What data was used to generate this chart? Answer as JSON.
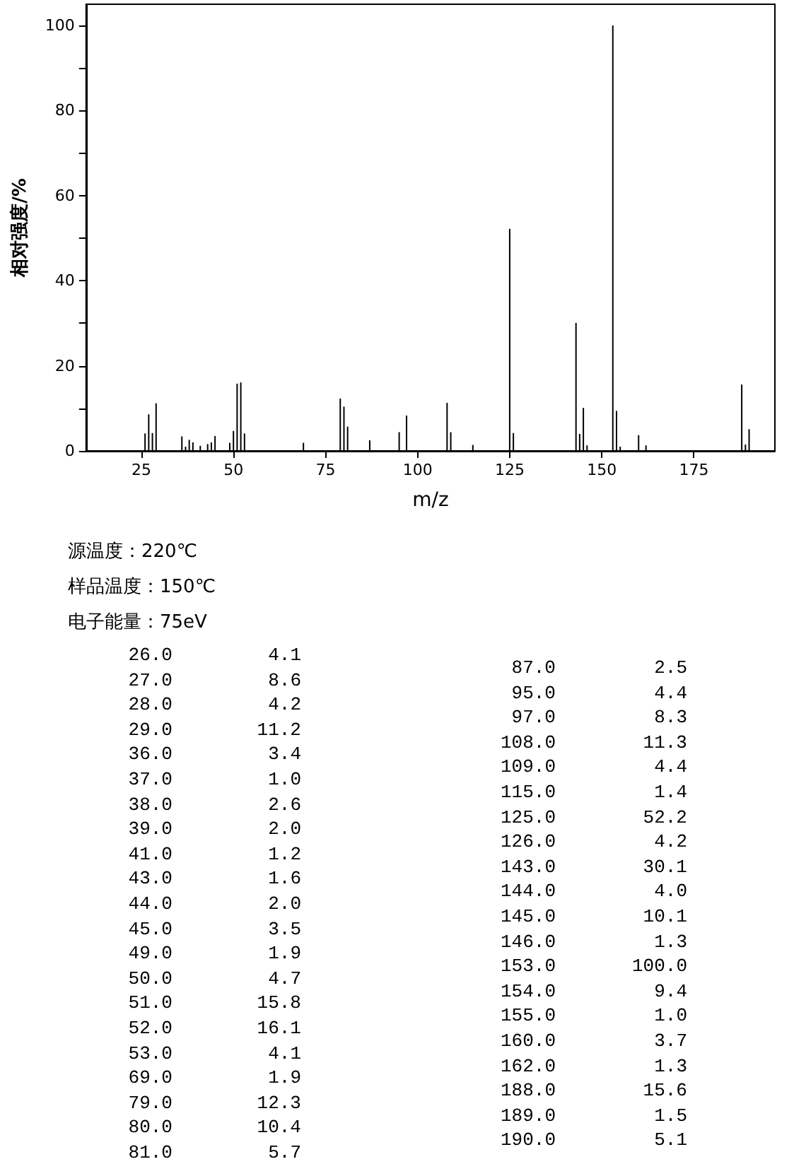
{
  "chart_data": [
    {
      "type": "bar",
      "xlabel": "m/z",
      "ylabel": "相对强度/%",
      "x": [
        26,
        27,
        28,
        29,
        36,
        37,
        38,
        39,
        41,
        43,
        44,
        45,
        49,
        50,
        51,
        52,
        53,
        69,
        79,
        80,
        81,
        87,
        95,
        97,
        108,
        109,
        115,
        125,
        126,
        143,
        144,
        145,
        146,
        153,
        154,
        155,
        160,
        162,
        188,
        189,
        190
      ],
      "values": [
        4.1,
        8.6,
        4.2,
        11.2,
        3.4,
        1.0,
        2.6,
        2.0,
        1.2,
        1.6,
        2.0,
        3.5,
        1.9,
        4.7,
        15.8,
        16.1,
        4.1,
        1.9,
        12.3,
        10.4,
        5.7,
        2.5,
        4.4,
        8.3,
        11.3,
        4.4,
        1.4,
        52.2,
        4.2,
        30.1,
        4.0,
        10.1,
        1.3,
        100.0,
        9.4,
        1.0,
        3.7,
        1.3,
        15.6,
        1.5,
        5.1
      ],
      "color": "#000000",
      "xlim": [
        10,
        197
      ],
      "xticks": [
        25,
        50,
        75,
        100,
        125,
        150,
        175
      ],
      "ylim": [
        0,
        105
      ],
      "yticks": [
        0,
        {
          "value": 10,
          "label": null
        },
        20,
        {
          "value": 30,
          "label": null
        },
        40,
        {
          "value": 50,
          "label": null
        },
        60,
        {
          "value": 70,
          "label": null
        },
        80,
        {
          "value": 90,
          "label": null
        },
        100
      ],
      "annotations": [
        "源温度：220℃",
        "样品温度：150℃",
        "电子能量：75eV"
      ]
    },
    {
      "type": "other",
      "annotations": [
        "26.0",
        "4.1",
        "27.0",
        "8.6",
        "28.0",
        "4.2",
        "29.0",
        "11.2",
        "36.0",
        "3.4",
        "37.0",
        "1.0",
        "38.0",
        "2.6",
        "39.0",
        "2.0",
        "41.0",
        "1.2",
        "43.0",
        "1.6",
        "44.0",
        "2.0",
        "45.0",
        "3.5",
        "49.0",
        "1.9",
        "50.0",
        "4.7",
        "51.0",
        "15.8",
        "52.0",
        "16.1",
        "53.0",
        "4.1",
        "69.0",
        "1.9",
        "79.0",
        "12.3",
        "80.0",
        "10.4",
        "81.0",
        "5.7",
        "87.0",
        "2.5",
        "95.0",
        "4.4",
        "97.0",
        "8.3",
        "108.0",
        "11.3",
        "109.0",
        "4.4",
        "115.0",
        "1.4",
        "125.0",
        "52.2",
        "126.0",
        "4.2",
        "143.0",
        "30.1",
        "144.0",
        "4.0",
        "145.0",
        "10.1",
        "146.0",
        "1.3",
        "153.0",
        "100.0",
        "154.0",
        "9.4",
        "155.0",
        "1.0",
        "160.0",
        "3.7",
        "162.0",
        "1.3",
        "188.0",
        "15.6",
        "189.0",
        "1.5",
        "190.0",
        "5.1"
      ]
    }
  ]
}
